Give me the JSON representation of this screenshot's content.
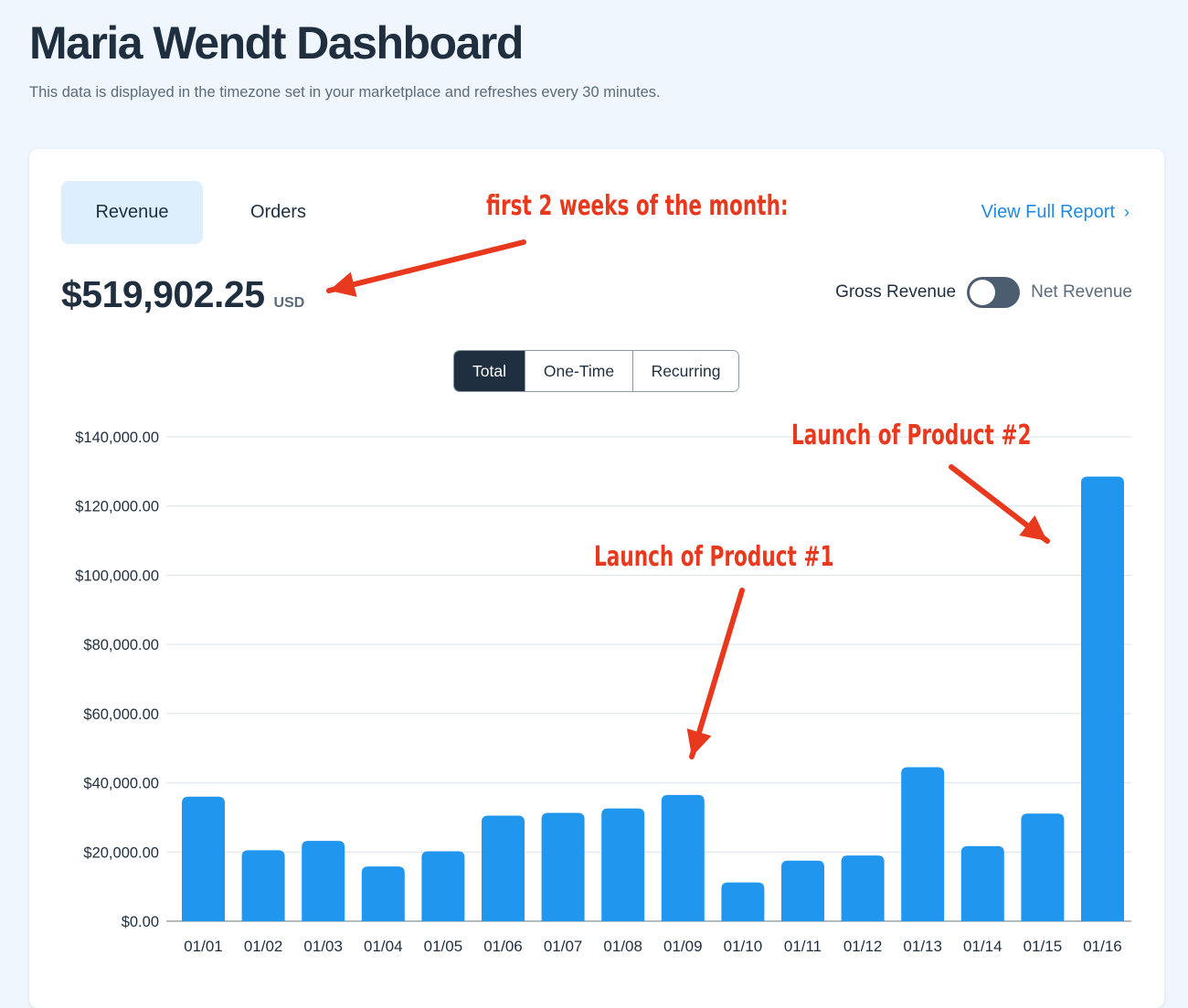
{
  "header": {
    "title": "Maria Wendt Dashboard",
    "subtitle": "This data is displayed in the timezone set in your marketplace and refreshes every 30 minutes."
  },
  "tabs": [
    {
      "label": "Revenue",
      "active": true
    },
    {
      "label": "Orders",
      "active": false
    }
  ],
  "view_report": {
    "label": "View Full Report",
    "icon": "chevron-right-icon"
  },
  "summary": {
    "amount": "$519,902.25",
    "currency": "USD"
  },
  "toggle": {
    "left_label": "Gross Revenue",
    "right_label": "Net Revenue",
    "state": "gross"
  },
  "segments": [
    {
      "label": "Total",
      "active": true
    },
    {
      "label": "One-Time",
      "active": false
    },
    {
      "label": "Recurring",
      "active": false
    }
  ],
  "annotations": {
    "top": "first 2 weeks of the month:",
    "product1": "Launch of Product #1",
    "product2": "Launch of Product #2"
  },
  "colors": {
    "bar": "#2196ef",
    "accent": "#1f8ae0",
    "annotation": "#e8391f",
    "dark": "#1f2f3f"
  },
  "chart_data": {
    "type": "bar",
    "categories": [
      "01/01",
      "01/02",
      "01/03",
      "01/04",
      "01/05",
      "01/06",
      "01/07",
      "01/08",
      "01/09",
      "01/10",
      "01/11",
      "01/12",
      "01/13",
      "01/14",
      "01/15",
      "01/16"
    ],
    "values": [
      36000,
      20500,
      23200,
      15800,
      20200,
      30500,
      31300,
      32600,
      36500,
      11200,
      17500,
      19000,
      44500,
      21700,
      31100,
      128500
    ],
    "yticks": [
      "$0.00",
      "$20,000.00",
      "$40,000.00",
      "$60,000.00",
      "$80,000.00",
      "$100,000.00",
      "$120,000.00",
      "$140,000.00"
    ],
    "ylim": [
      0,
      140000
    ],
    "grid": true
  }
}
